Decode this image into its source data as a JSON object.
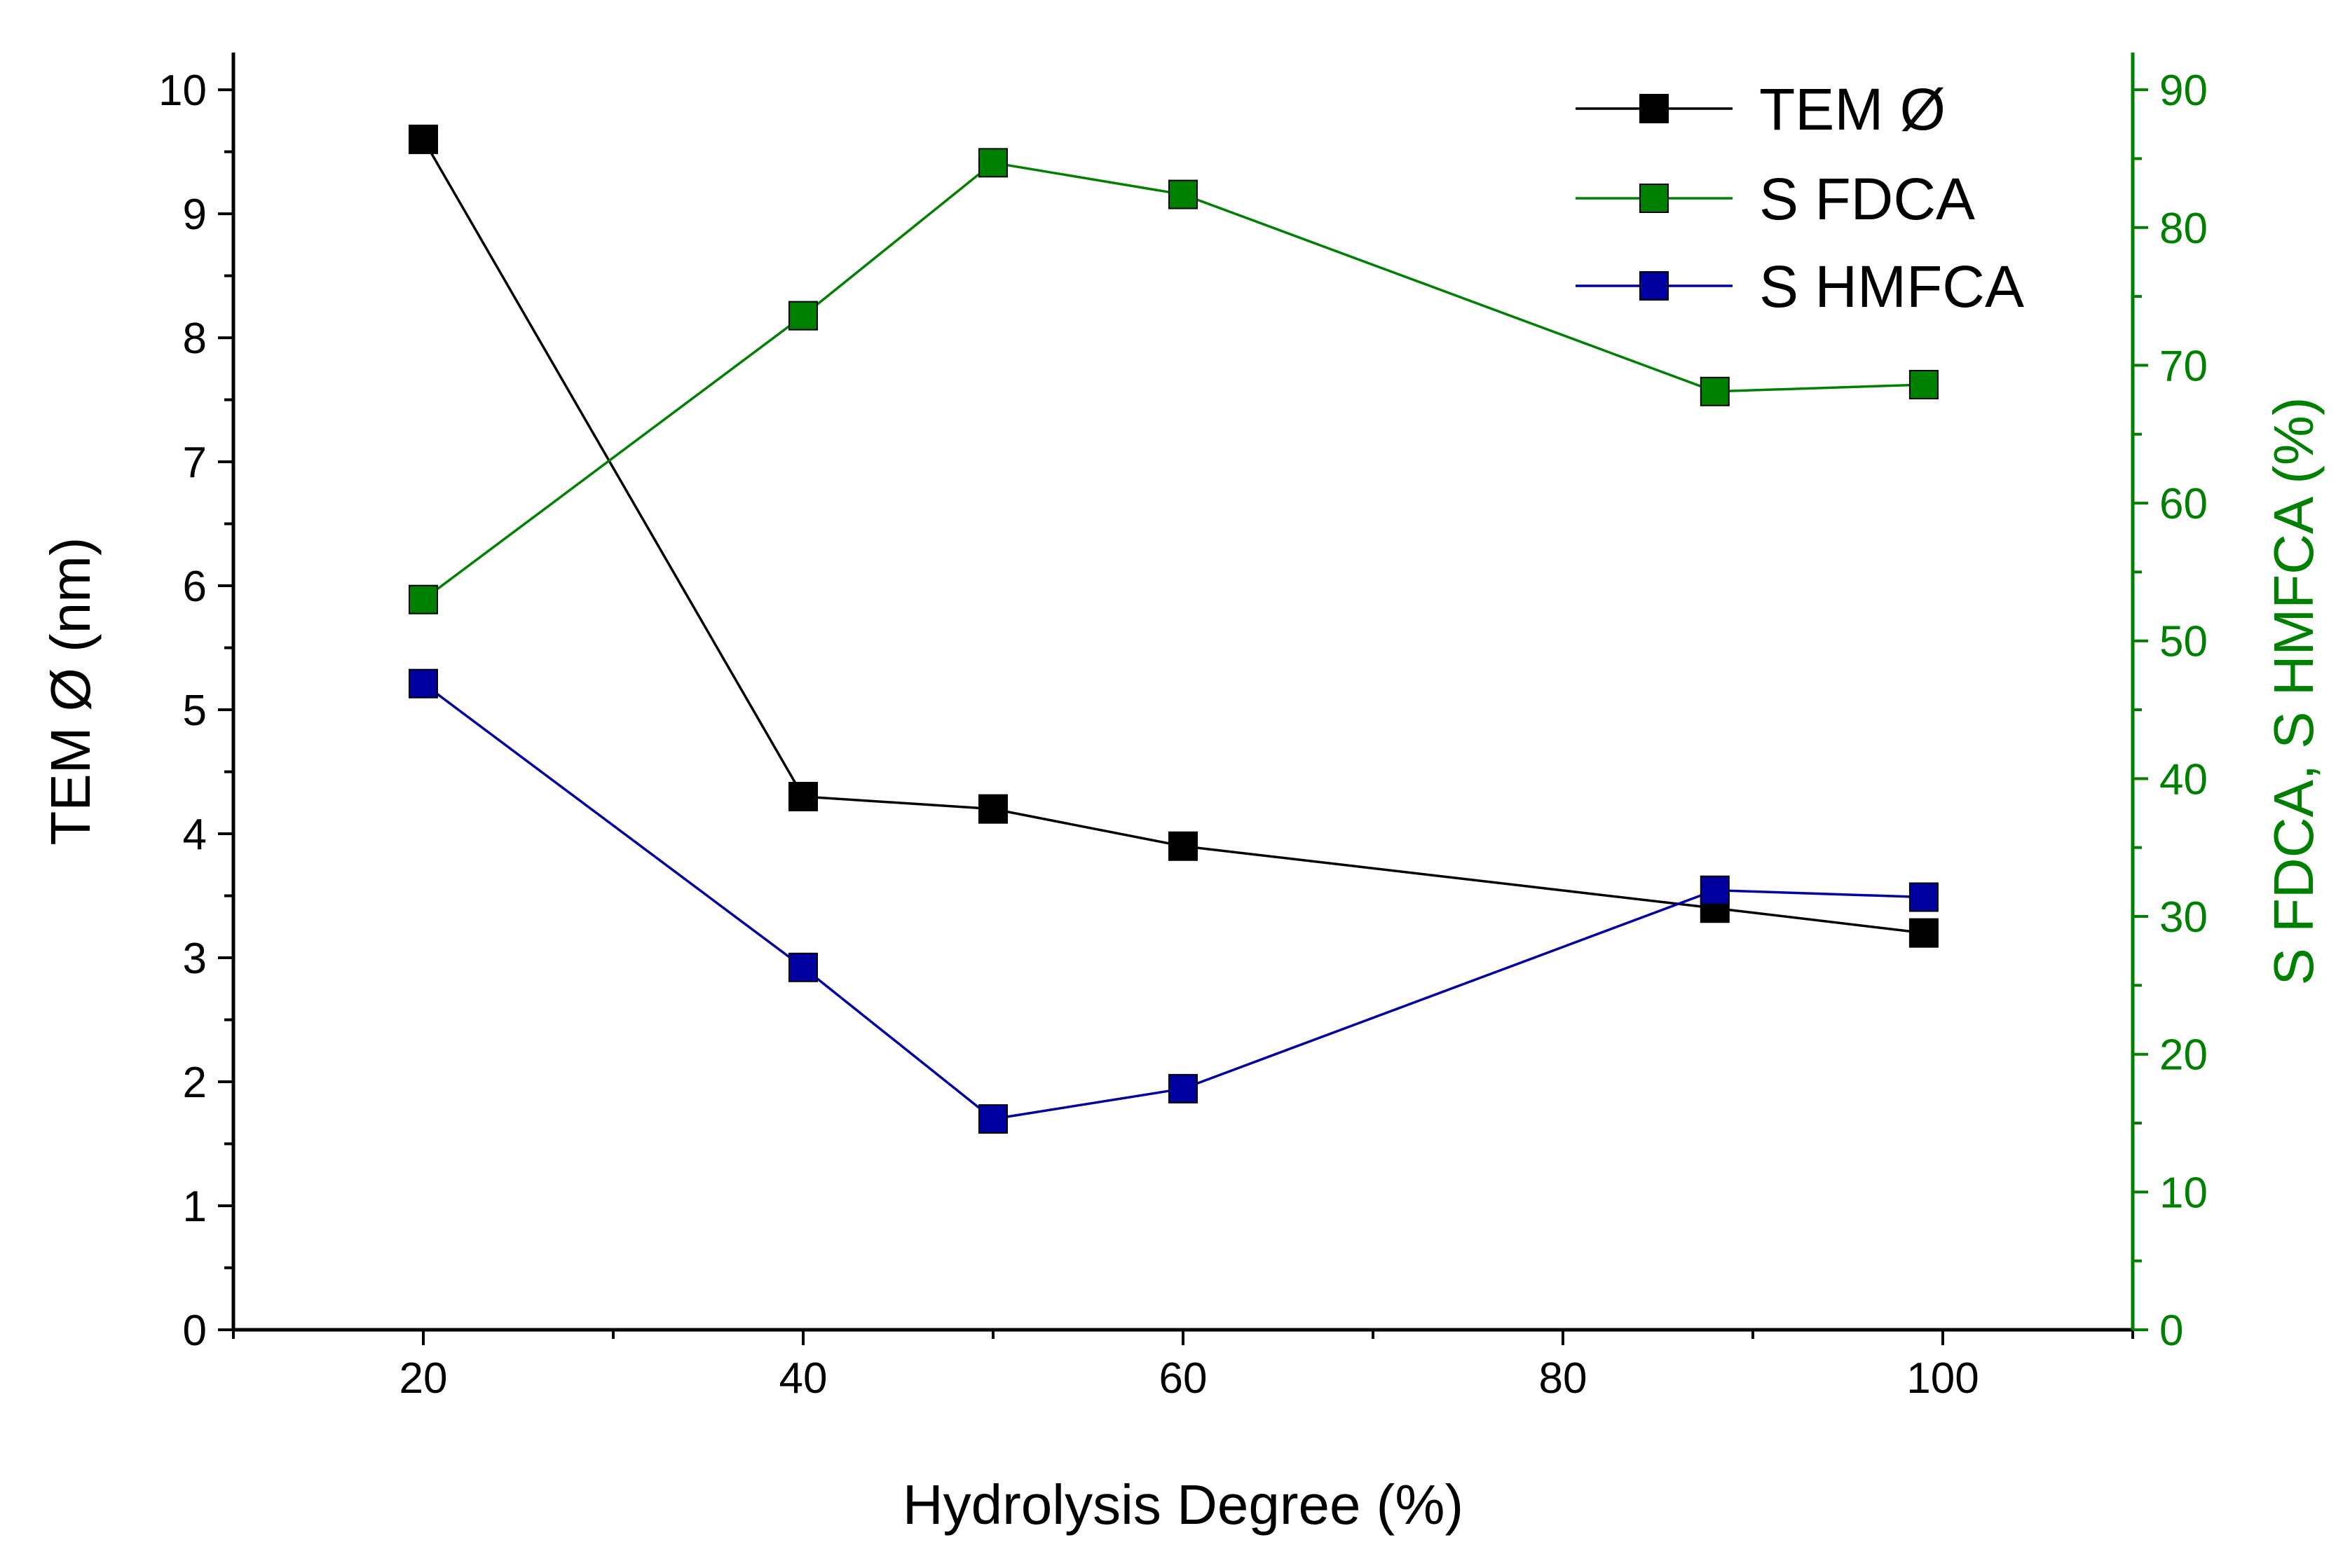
{
  "chart_data": {
    "type": "line",
    "title": "",
    "xlabel": "Hydrolysis Degree (%)",
    "ylabel_left": "TEM Ø (nm)",
    "ylabel_right": "S FDCA, S HMFCA (%)",
    "xlim": [
      10,
      110
    ],
    "ylim_left": [
      0,
      10.3
    ],
    "ylim_right": [
      0,
      92.7
    ],
    "x_ticks": [
      20,
      40,
      60,
      80,
      100
    ],
    "y_left_ticks": [
      0,
      1,
      2,
      3,
      4,
      5,
      6,
      7,
      8,
      9,
      10
    ],
    "y_right_ticks": [
      0,
      10,
      20,
      30,
      40,
      50,
      60,
      70,
      80,
      90
    ],
    "grid": false,
    "legend_position": "top-right",
    "series": [
      {
        "name": "TEM Ø",
        "axis": "left",
        "color": "#000000",
        "x": [
          20,
          40,
          50,
          60,
          88,
          99
        ],
        "values": [
          9.6,
          4.3,
          4.2,
          3.9,
          3.4,
          3.2
        ]
      },
      {
        "name": "S FDCA",
        "axis": "right",
        "color": "#008000",
        "x": [
          20,
          40,
          50,
          60,
          88,
          99
        ],
        "values": [
          53,
          73.6,
          84.7,
          82.4,
          68.1,
          68.6
        ]
      },
      {
        "name": "S HMFCA",
        "axis": "right",
        "color": "#0000A0",
        "x": [
          20,
          40,
          50,
          60,
          88,
          99
        ],
        "values": [
          46.9,
          26.3,
          15.3,
          17.5,
          31.9,
          31.4
        ]
      }
    ]
  }
}
